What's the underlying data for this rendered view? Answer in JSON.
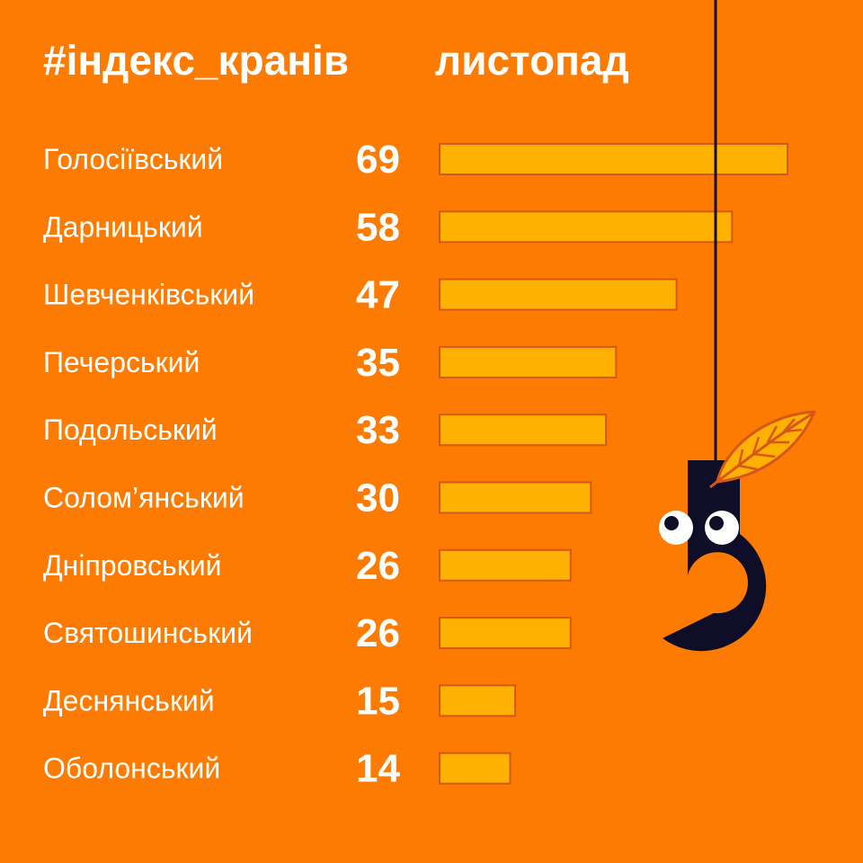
{
  "header": {
    "title": "#індекс_кранів",
    "subtitle": "листопад"
  },
  "colors": {
    "background": "#FD7B01",
    "bar_fill": "#FEB100",
    "bar_stroke": "#D6571A",
    "text": "#FFFFFF",
    "mascot": "#0E0E28",
    "leaf": "#FEB100"
  },
  "chart_data": {
    "type": "bar",
    "orientation": "horizontal",
    "title": "#індекс_кранів",
    "subtitle": "листопад",
    "categories": [
      "Голосіївський",
      "Дарницький",
      "Шевченківський",
      "Печерський",
      "Подольський",
      "Солом’янський",
      "Дніпровський",
      "Святошинський",
      "Деснянський",
      "Оболонський"
    ],
    "values": [
      69,
      58,
      47,
      35,
      33,
      30,
      26,
      26,
      15,
      14
    ],
    "data_labels": [
      "69",
      "58",
      "47",
      "35",
      "33",
      "30",
      "26",
      "26",
      "15",
      "14"
    ],
    "xlim": [
      0,
      69
    ],
    "grid": false,
    "legend": "none"
  },
  "decor": {
    "mascot": "hook-shaped-3-with-eyes-and-autumn-leaf"
  }
}
